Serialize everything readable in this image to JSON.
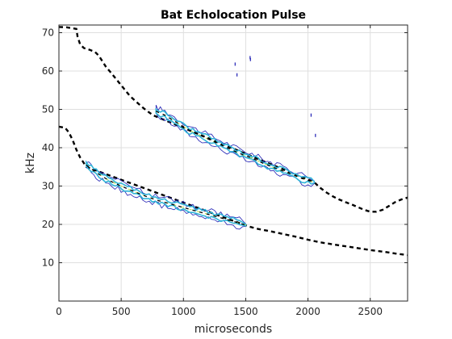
{
  "chart_data": {
    "type": "contour",
    "title": "Bat Echolocation Pulse",
    "xlabel": "microseconds",
    "ylabel": "kHz",
    "xlim": [
      0,
      2800
    ],
    "ylim": [
      0,
      72
    ],
    "xticks": [
      0,
      500,
      1000,
      1500,
      2000,
      2500
    ],
    "yticks": [
      10,
      20,
      30,
      40,
      50,
      60,
      70
    ],
    "grid": true,
    "colors": {
      "dashes": "#000000",
      "contour_outer": "#1f1fb4",
      "contour_inner": "#2fb4d8",
      "contour_core": "#b8e04a",
      "axis": "#262626",
      "grid": "#dfdfdf"
    },
    "series": [
      {
        "role": "upper-harmonic",
        "dashed_trace": [
          [
            0,
            71.5
          ],
          [
            60,
            71.4
          ],
          [
            100,
            71.2
          ],
          [
            140,
            71
          ],
          [
            150,
            69
          ],
          [
            170,
            67
          ],
          [
            200,
            66
          ],
          [
            250,
            65.5
          ],
          [
            290,
            65
          ],
          [
            320,
            64
          ],
          [
            350,
            62.5
          ],
          [
            380,
            61
          ],
          [
            420,
            59.5
          ],
          [
            470,
            57.5
          ],
          [
            520,
            55.5
          ],
          [
            570,
            53.5
          ],
          [
            620,
            52
          ],
          [
            680,
            50.3
          ],
          [
            720,
            49.3
          ],
          [
            760,
            48.4
          ],
          [
            2050,
            31
          ],
          [
            2100,
            29.5
          ],
          [
            2150,
            28.3
          ],
          [
            2200,
            27.3
          ],
          [
            2250,
            26.5
          ],
          [
            2300,
            25.8
          ],
          [
            2350,
            25.2
          ],
          [
            2400,
            24.5
          ],
          [
            2450,
            23.8
          ],
          [
            2500,
            23.3
          ],
          [
            2550,
            23.3
          ],
          [
            2600,
            23.8
          ],
          [
            2650,
            24.8
          ],
          [
            2700,
            25.8
          ],
          [
            2750,
            26.5
          ],
          [
            2800,
            27
          ]
        ],
        "contour_path": [
          [
            780,
            49.5
          ],
          [
            850,
            48.5
          ],
          [
            950,
            46.5
          ],
          [
            1050,
            44.5
          ],
          [
            1150,
            43
          ],
          [
            1250,
            41.5
          ],
          [
            1350,
            40
          ],
          [
            1450,
            38.5
          ],
          [
            1550,
            37.3
          ],
          [
            1650,
            35.8
          ],
          [
            1750,
            34.5
          ],
          [
            1850,
            33.3
          ],
          [
            1950,
            32
          ],
          [
            2050,
            31
          ]
        ]
      },
      {
        "role": "fundamental",
        "dashed_trace": [
          [
            0,
            45.5
          ],
          [
            50,
            45.2
          ],
          [
            80,
            44
          ],
          [
            110,
            42
          ],
          [
            140,
            39.5
          ],
          [
            170,
            37.5
          ],
          [
            200,
            36
          ],
          [
            220,
            35
          ],
          [
            1520,
            19.5
          ],
          [
            1600,
            18.8
          ],
          [
            1700,
            18.2
          ],
          [
            1800,
            17.5
          ],
          [
            1900,
            16.8
          ],
          [
            2000,
            16
          ],
          [
            2100,
            15.3
          ],
          [
            2200,
            14.8
          ],
          [
            2300,
            14.3
          ],
          [
            2400,
            13.8
          ],
          [
            2500,
            13.3
          ],
          [
            2600,
            12.9
          ],
          [
            2700,
            12.4
          ],
          [
            2800,
            12
          ]
        ],
        "contour_path": [
          [
            220,
            35.5
          ],
          [
            300,
            33.5
          ],
          [
            400,
            31.5
          ],
          [
            500,
            30
          ],
          [
            600,
            28.6
          ],
          [
            700,
            27.3
          ],
          [
            800,
            26.2
          ],
          [
            900,
            25.3
          ],
          [
            1000,
            24.4
          ],
          [
            1100,
            23.5
          ],
          [
            1200,
            22.6
          ],
          [
            1300,
            21.7
          ],
          [
            1400,
            20.8
          ],
          [
            1500,
            19.8
          ]
        ]
      }
    ],
    "specks": [
      [
        1415,
        61.8
      ],
      [
        1430,
        59
      ],
      [
        1535,
        63.5
      ],
      [
        1538,
        63
      ],
      [
        2025,
        48.5
      ],
      [
        2060,
        43.2
      ]
    ]
  }
}
